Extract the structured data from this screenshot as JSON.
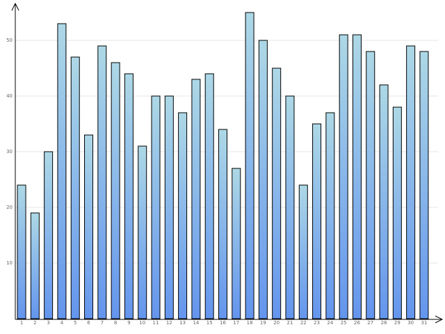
{
  "chart_data": {
    "type": "bar",
    "categories": [
      "1",
      "2",
      "3",
      "4",
      "5",
      "6",
      "7",
      "8",
      "9",
      "10",
      "11",
      "12",
      "13",
      "14",
      "15",
      "16",
      "17",
      "18",
      "19",
      "20",
      "21",
      "22",
      "23",
      "24",
      "25",
      "26",
      "27",
      "28",
      "29",
      "30",
      "31"
    ],
    "values": [
      24,
      19,
      30,
      53,
      47,
      33,
      49,
      46,
      44,
      31,
      40,
      40,
      37,
      43,
      44,
      34,
      27,
      55,
      50,
      45,
      40,
      24,
      35,
      37,
      51,
      51,
      48,
      42,
      38,
      49,
      48
    ],
    "gradient": [
      "#add8e6",
      "#6495ed"
    ],
    "ylim": [
      0,
      56
    ],
    "yticks": [
      10,
      20,
      30,
      40,
      50
    ],
    "grid": true
  }
}
